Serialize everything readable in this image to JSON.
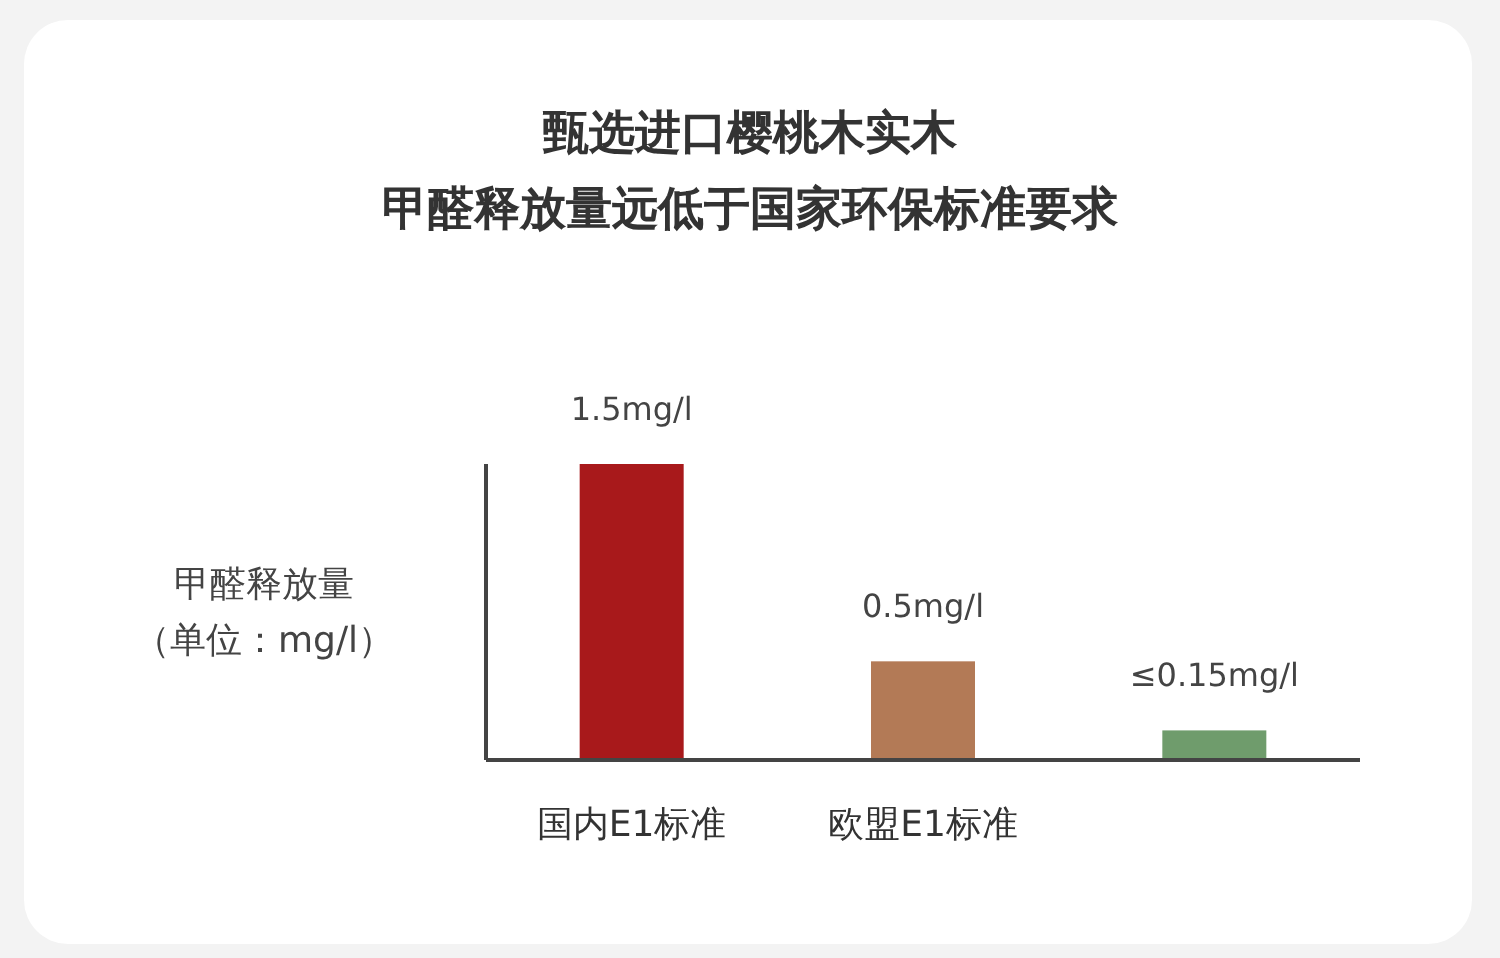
{
  "chart_data": {
    "type": "bar",
    "title": "甄选进口樱桃木实木",
    "subtitle": "甲醛释放量远低于国家环保标准要求",
    "ylabel": "甲醛释放量",
    "annotations": [
      "（单位：mg/l）"
    ],
    "categories": [
      "国内E1标准",
      "欧盟E1标准",
      null
    ],
    "values": [
      1.5,
      0.5,
      0.15
    ],
    "colors": [
      "#a8191b",
      "#b37a56",
      "#6f9c6c"
    ],
    "value_labels": [
      "1.5mg/l",
      "0.5mg/l",
      "≤0.15mg/l"
    ]
  }
}
